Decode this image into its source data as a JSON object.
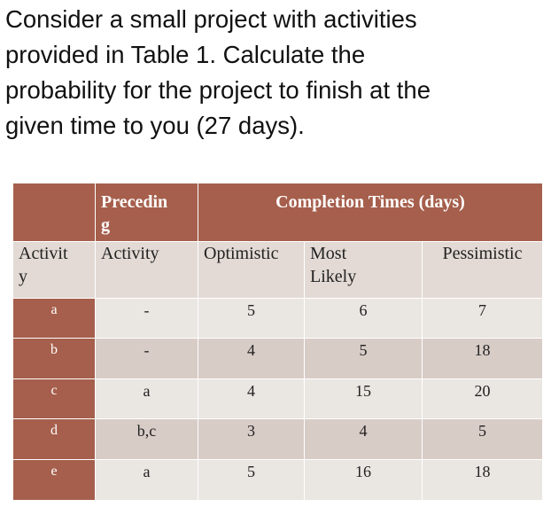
{
  "question": {
    "lines": [
      "Consider a small project with activities",
      "provided in Table 1. Calculate the",
      "probability for the project to finish at the",
      "given time to you (27 days)."
    ]
  },
  "table": {
    "header": {
      "preceding_line1": "Precedin",
      "preceding_line2": "g",
      "completion": "Completion Times (days)"
    },
    "subheader": {
      "activity_line1": "Activit",
      "activity_line2": "y",
      "preceding_activity": "Activity",
      "optimistic": "Optimistic",
      "most_line1": "Most",
      "most_line2": "Likely",
      "pessimistic": "Pessimistic"
    },
    "rows": [
      {
        "activity": "a",
        "preceding": "-",
        "optimistic": "5",
        "most_likely": "6",
        "pessimistic": "7"
      },
      {
        "activity": "b",
        "preceding": "-",
        "optimistic": "4",
        "most_likely": "5",
        "pessimistic": "18"
      },
      {
        "activity": "c",
        "preceding": "a",
        "optimistic": "4",
        "most_likely": "15",
        "pessimistic": "20"
      },
      {
        "activity": "d",
        "preceding": "b,c",
        "optimistic": "3",
        "most_likely": "4",
        "pessimistic": "5"
      },
      {
        "activity": "e",
        "preceding": "a",
        "optimistic": "5",
        "most_likely": "16",
        "pessimistic": "18"
      }
    ]
  },
  "colors": {
    "header_brown": "#a65f4c",
    "row_light": "#eae6e2",
    "row_dark": "#d8ccc7"
  }
}
